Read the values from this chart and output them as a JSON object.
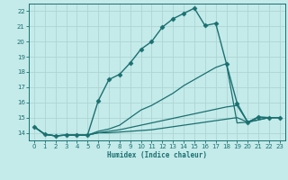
{
  "title": "",
  "xlabel": "Humidex (Indice chaleur)",
  "ylabel": "",
  "bg_color": "#c5eaea",
  "line_color": "#1a7070",
  "grid_color": "#aed4d4",
  "xlim": [
    -0.5,
    23.5
  ],
  "ylim": [
    13.5,
    22.5
  ],
  "xticks": [
    0,
    1,
    2,
    3,
    4,
    5,
    6,
    7,
    8,
    9,
    10,
    11,
    12,
    13,
    14,
    15,
    16,
    17,
    18,
    19,
    20,
    21,
    22,
    23
  ],
  "yticks": [
    14,
    15,
    16,
    17,
    18,
    19,
    20,
    21,
    22
  ],
  "series": [
    {
      "x": [
        0,
        1,
        2,
        3,
        4,
        5,
        6,
        7,
        8,
        9,
        10,
        11,
        12,
        13,
        14,
        15,
        16,
        17,
        18,
        19,
        20,
        21,
        22,
        23
      ],
      "y": [
        14.4,
        13.9,
        13.8,
        13.85,
        13.85,
        13.85,
        16.1,
        17.5,
        17.85,
        18.6,
        19.5,
        20.0,
        20.95,
        21.5,
        21.85,
        22.2,
        21.05,
        21.2,
        18.55,
        15.95,
        14.7,
        15.05,
        15.0,
        15.0
      ],
      "marker": "D",
      "markersize": 2.5,
      "linewidth": 1.0
    },
    {
      "x": [
        0,
        1,
        2,
        3,
        4,
        5,
        6,
        7,
        8,
        9,
        10,
        11,
        12,
        13,
        14,
        15,
        16,
        17,
        18,
        19,
        20,
        21,
        22,
        23
      ],
      "y": [
        14.4,
        13.9,
        13.8,
        13.85,
        13.85,
        13.85,
        14.1,
        14.25,
        14.5,
        15.0,
        15.5,
        15.8,
        16.2,
        16.6,
        17.1,
        17.5,
        17.9,
        18.3,
        18.55,
        14.65,
        14.7,
        15.0,
        15.0,
        15.0
      ],
      "marker": null,
      "markersize": 0,
      "linewidth": 0.9
    },
    {
      "x": [
        0,
        1,
        2,
        3,
        4,
        5,
        6,
        7,
        8,
        9,
        10,
        11,
        12,
        13,
        14,
        15,
        16,
        17,
        18,
        19,
        20,
        21,
        22,
        23
      ],
      "y": [
        14.4,
        13.9,
        13.8,
        13.85,
        13.85,
        13.85,
        14.0,
        14.1,
        14.2,
        14.35,
        14.5,
        14.65,
        14.8,
        14.95,
        15.1,
        15.25,
        15.4,
        15.55,
        15.7,
        15.8,
        14.7,
        14.85,
        15.0,
        15.0
      ],
      "marker": null,
      "markersize": 0,
      "linewidth": 0.9
    },
    {
      "x": [
        0,
        1,
        2,
        3,
        4,
        5,
        6,
        7,
        8,
        9,
        10,
        11,
        12,
        13,
        14,
        15,
        16,
        17,
        18,
        19,
        20,
        21,
        22,
        23
      ],
      "y": [
        14.4,
        13.9,
        13.8,
        13.85,
        13.85,
        13.85,
        14.0,
        14.0,
        14.05,
        14.1,
        14.15,
        14.2,
        14.3,
        14.4,
        14.5,
        14.6,
        14.7,
        14.8,
        14.9,
        15.0,
        14.7,
        14.85,
        15.0,
        15.0
      ],
      "marker": null,
      "markersize": 0,
      "linewidth": 0.9
    }
  ],
  "figwidth": 3.2,
  "figheight": 2.0,
  "dpi": 100
}
